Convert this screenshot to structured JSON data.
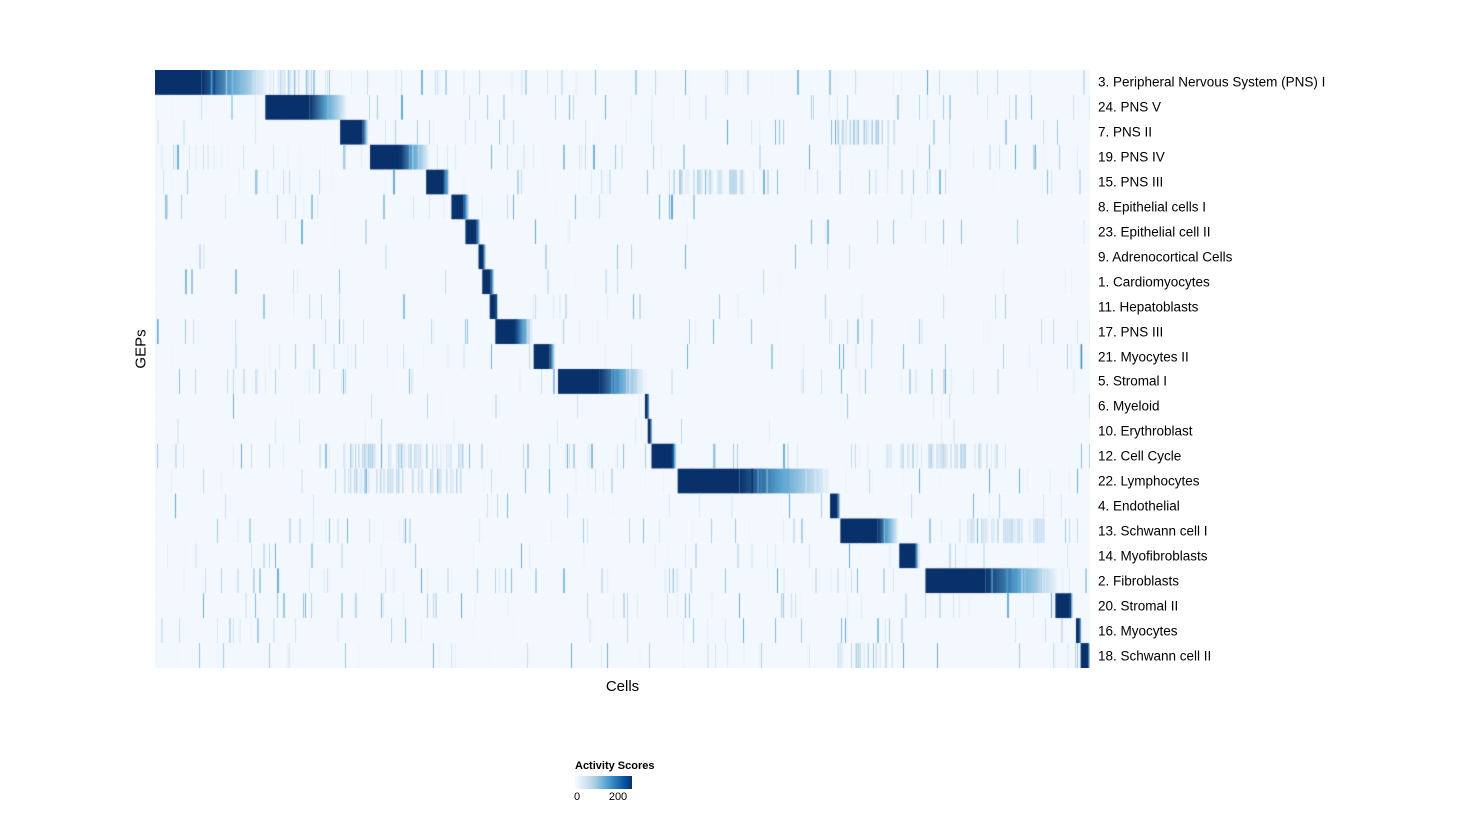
{
  "figure": {
    "background": "#ffffff"
  },
  "chart_data": {
    "type": "heatmap",
    "title": "",
    "xlabel": "Cells",
    "ylabel": "GEPs",
    "value_range": [
      0,
      200
    ],
    "grid": false,
    "legend_position": "bottom",
    "colormap": {
      "name": "Blues",
      "stops": [
        "#f7fbff",
        "#deebf7",
        "#c6dbef",
        "#9ecae1",
        "#6baed6",
        "#4292c6",
        "#2171b5",
        "#08519c",
        "#08306b"
      ]
    },
    "legend": {
      "title": "Activity Scores",
      "min_label": "0",
      "max_label": "200"
    },
    "rows": [
      {
        "label": "3. Peripheral Nervous System (PNS) I",
        "block": [
          0.0,
          0.05,
          0.12
        ],
        "noise": 0.45,
        "bands": [
          [
            0.125,
            0.175,
            0.35
          ]
        ]
      },
      {
        "label": "24. PNS V",
        "block": [
          0.118,
          0.165,
          0.205
        ],
        "noise": 0.35,
        "bands": []
      },
      {
        "label": "7. PNS II",
        "block": [
          0.198,
          0.222,
          0.228
        ],
        "noise": 0.3,
        "bands": [
          [
            0.73,
            0.79,
            0.35
          ]
        ]
      },
      {
        "label": "19. PNS IV",
        "block": [
          0.23,
          0.262,
          0.293
        ],
        "noise": 0.45,
        "bands": []
      },
      {
        "label": "15. PNS III",
        "block": [
          0.29,
          0.308,
          0.315
        ],
        "noise": 0.5,
        "bands": [
          [
            0.55,
            0.63,
            0.3
          ]
        ]
      },
      {
        "label": "8. Epithelial cells I",
        "block": [
          0.317,
          0.33,
          0.336
        ],
        "noise": 0.15,
        "bands": []
      },
      {
        "label": "23. Epithelial cell II",
        "block": [
          0.332,
          0.344,
          0.348
        ],
        "noise": 0.2,
        "bands": []
      },
      {
        "label": "9. Adrenocortical Cells",
        "block": [
          0.346,
          0.351,
          0.354
        ],
        "noise": 0.1,
        "bands": []
      },
      {
        "label": "1. Cardiomyocytes",
        "block": [
          0.35,
          0.359,
          0.363
        ],
        "noise": 0.15,
        "bands": []
      },
      {
        "label": "11. Hepatoblasts",
        "block": [
          0.358,
          0.364,
          0.367
        ],
        "noise": 0.1,
        "bands": []
      },
      {
        "label": "17. PNS III",
        "block": [
          0.364,
          0.385,
          0.404
        ],
        "noise": 0.35,
        "bands": [
          [
            0.0,
            0.004,
            0.8
          ]
        ]
      },
      {
        "label": "21. Myocytes II",
        "block": [
          0.405,
          0.422,
          0.428
        ],
        "noise": 0.3,
        "bands": [
          [
            0.99,
            0.993,
            0.9
          ]
        ]
      },
      {
        "label": "5. Stromal I",
        "block": [
          0.431,
          0.475,
          0.523
        ],
        "noise": 0.35,
        "bands": []
      },
      {
        "label": "6. Myeloid",
        "block": [
          0.524,
          0.527,
          0.529
        ],
        "noise": 0.15,
        "bands": []
      },
      {
        "label": "10. Erythroblast",
        "block": [
          0.527,
          0.53,
          0.532
        ],
        "noise": 0.1,
        "bands": []
      },
      {
        "label": "12. Cell Cycle",
        "block": [
          0.531,
          0.553,
          0.558
        ],
        "noise": 0.55,
        "bands": [
          [
            0.2,
            0.33,
            0.3
          ],
          [
            0.78,
            0.9,
            0.28
          ]
        ]
      },
      {
        "label": "22. Lymphocytes",
        "block": [
          0.559,
          0.625,
          0.722
        ],
        "noise": 0.4,
        "bands": [
          [
            0.2,
            0.33,
            0.25
          ]
        ]
      },
      {
        "label": "4. Endothelial",
        "block": [
          0.722,
          0.73,
          0.733
        ],
        "noise": 0.2,
        "bands": []
      },
      {
        "label": "13. Schwann cell I",
        "block": [
          0.733,
          0.773,
          0.795
        ],
        "noise": 0.35,
        "bands": [
          [
            0.86,
            0.95,
            0.25
          ]
        ]
      },
      {
        "label": "14. Myofibroblasts",
        "block": [
          0.796,
          0.813,
          0.817
        ],
        "noise": 0.25,
        "bands": []
      },
      {
        "label": "2. Fibroblasts",
        "block": [
          0.824,
          0.888,
          0.965
        ],
        "noise": 0.4,
        "bands": [
          [
            0.545,
            0.575,
            0.3
          ]
        ]
      },
      {
        "label": "20. Stromal II",
        "block": [
          0.963,
          0.978,
          0.982
        ],
        "noise": 0.4,
        "bands": []
      },
      {
        "label": "16. Myocytes",
        "block": [
          0.985,
          0.989,
          0.991
        ],
        "noise": 0.25,
        "bands": []
      },
      {
        "label": "18. Schwann cell II",
        "block": [
          0.99,
          0.998,
          1.0
        ],
        "noise": 0.35,
        "bands": [
          [
            0.73,
            0.79,
            0.28
          ]
        ]
      }
    ]
  }
}
